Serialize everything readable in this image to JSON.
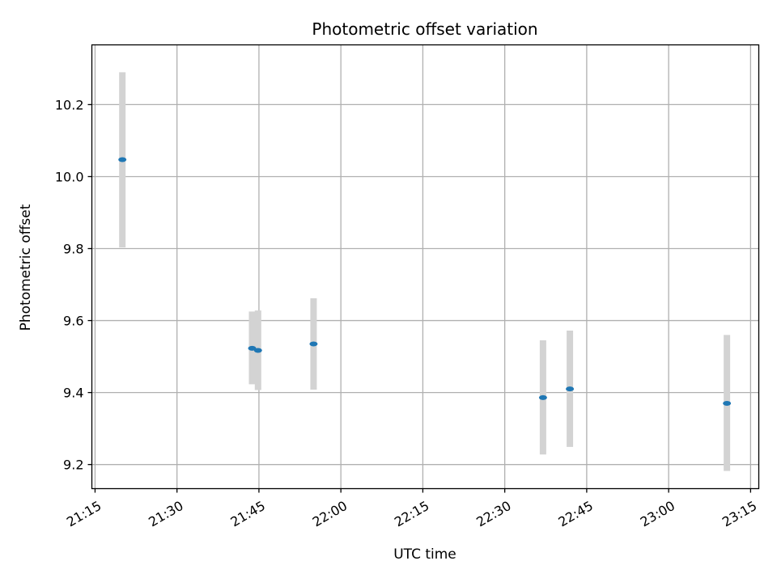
{
  "chart_data": {
    "type": "scatter",
    "title": "Photometric offset variation",
    "xlabel": "UTC time",
    "ylabel": "Photometric offset",
    "x_ticks": [
      "21:15",
      "21:30",
      "21:45",
      "22:00",
      "22:15",
      "22:30",
      "22:45",
      "23:00",
      "23:15"
    ],
    "y_ticks": [
      "9.2",
      "9.4",
      "9.6",
      "9.8",
      "10.0",
      "10.2"
    ],
    "xlim": [
      "21:14:25",
      "23:16:30"
    ],
    "ylim": [
      9.133,
      10.366
    ],
    "grid": true,
    "colors": {
      "points": "#1f77b4",
      "error_bars": "#d3d3d3",
      "grid": "#b0b0b0"
    },
    "points": [
      {
        "x": "21:20:00",
        "y": 10.047,
        "ylow": 9.803,
        "yhigh": 10.29
      },
      {
        "x": "21:43:45",
        "y": 9.523,
        "ylow": 9.423,
        "yhigh": 9.625
      },
      {
        "x": "21:44:50",
        "y": 9.517,
        "ylow": 9.407,
        "yhigh": 9.628
      },
      {
        "x": "21:55:00",
        "y": 9.535,
        "ylow": 9.408,
        "yhigh": 9.662
      },
      {
        "x": "22:37:00",
        "y": 9.386,
        "ylow": 9.228,
        "yhigh": 9.545
      },
      {
        "x": "22:41:55",
        "y": 9.41,
        "ylow": 9.249,
        "yhigh": 9.572
      },
      {
        "x": "23:10:40",
        "y": 9.37,
        "ylow": 9.182,
        "yhigh": 9.56
      }
    ]
  }
}
